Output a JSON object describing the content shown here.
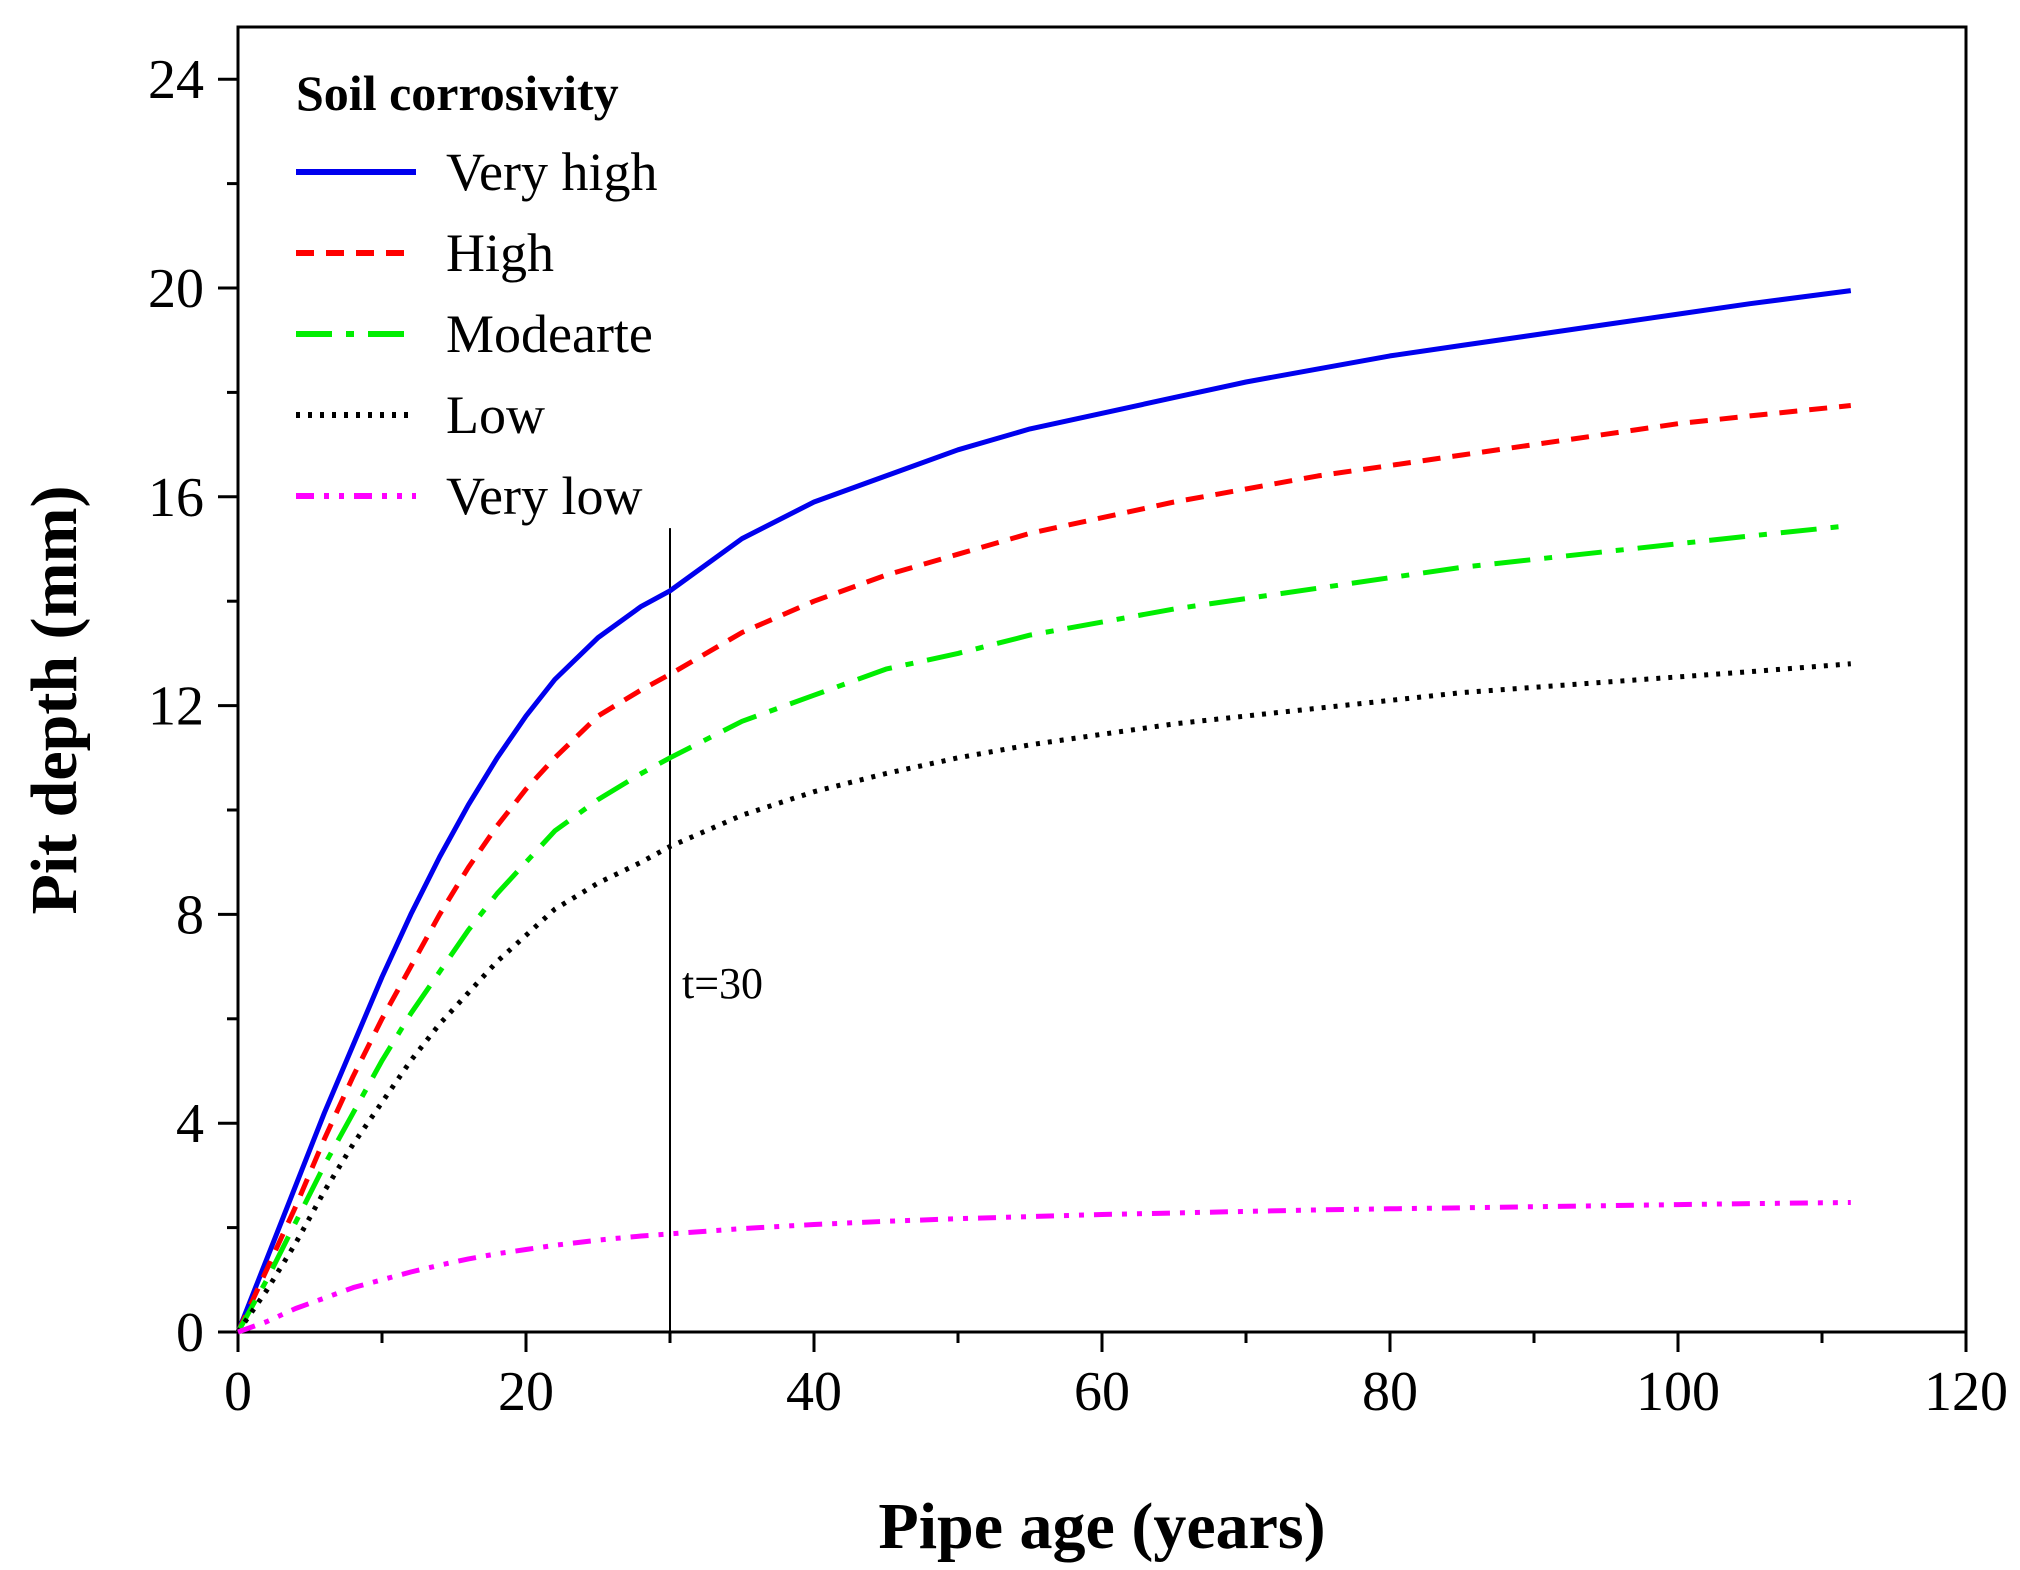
{
  "chart_data": {
    "type": "line",
    "xlabel": "Pipe age (years)",
    "ylabel": "Pit depth (mm)",
    "xlim": [
      0,
      120
    ],
    "ylim": [
      0,
      25
    ],
    "x_ticks": [
      0,
      20,
      40,
      60,
      80,
      100,
      120
    ],
    "x_tick_labels": [
      "0",
      "20",
      "40",
      "60",
      "80",
      "100",
      "120"
    ],
    "y_ticks": [
      0,
      4,
      8,
      12,
      16,
      20,
      24
    ],
    "y_tick_labels": [
      "0",
      "4",
      "8",
      "12",
      "16",
      "20",
      "24"
    ],
    "grid": false,
    "legend": {
      "title": "Soil corrosivity",
      "position": "top-left"
    },
    "x": [
      0,
      2,
      4,
      6,
      8,
      10,
      12,
      14,
      16,
      18,
      20,
      22,
      25,
      28,
      30,
      35,
      40,
      45,
      50,
      55,
      60,
      65,
      70,
      75,
      80,
      85,
      90,
      95,
      100,
      105,
      112
    ],
    "series": [
      {
        "name": "Very high",
        "color": "#0000ee",
        "dash": "solid",
        "values": [
          0,
          1.4,
          2.8,
          4.2,
          5.5,
          6.8,
          8.0,
          9.1,
          10.1,
          11.0,
          11.8,
          12.5,
          13.3,
          13.9,
          14.2,
          15.2,
          15.9,
          16.4,
          16.9,
          17.3,
          17.6,
          17.9,
          18.2,
          18.45,
          18.7,
          18.9,
          19.1,
          19.3,
          19.5,
          19.7,
          19.95
        ]
      },
      {
        "name": "High",
        "color": "#ff0000",
        "dash": "short-dash",
        "values": [
          0,
          1.2,
          2.4,
          3.7,
          4.9,
          6.0,
          7.0,
          8.0,
          8.9,
          9.7,
          10.4,
          11.0,
          11.8,
          12.3,
          12.6,
          13.4,
          14.0,
          14.5,
          14.9,
          15.3,
          15.6,
          15.9,
          16.15,
          16.4,
          16.6,
          16.8,
          17.0,
          17.2,
          17.4,
          17.55,
          17.75
        ]
      },
      {
        "name": "Modearte",
        "color": "#00ee00",
        "dash": "dash-dot",
        "values": [
          0,
          1.0,
          2.1,
          3.2,
          4.2,
          5.2,
          6.1,
          6.9,
          7.7,
          8.4,
          9.0,
          9.6,
          10.2,
          10.7,
          11.0,
          11.7,
          12.2,
          12.7,
          13.0,
          13.35,
          13.6,
          13.85,
          14.05,
          14.25,
          14.45,
          14.65,
          14.8,
          14.95,
          15.1,
          15.25,
          15.45
        ]
      },
      {
        "name": "Low",
        "color": "#000000",
        "dash": "dotted",
        "values": [
          0,
          0.8,
          1.7,
          2.7,
          3.6,
          4.4,
          5.2,
          5.9,
          6.5,
          7.1,
          7.6,
          8.1,
          8.6,
          9.0,
          9.3,
          9.9,
          10.35,
          10.7,
          11.0,
          11.25,
          11.45,
          11.65,
          11.8,
          11.95,
          12.1,
          12.25,
          12.35,
          12.45,
          12.55,
          12.65,
          12.8
        ]
      },
      {
        "name": "Very low",
        "color": "#ff00ff",
        "dash": "dash-dot-dot",
        "values": [
          0,
          0.2,
          0.45,
          0.65,
          0.85,
          1.0,
          1.15,
          1.28,
          1.4,
          1.5,
          1.58,
          1.66,
          1.76,
          1.84,
          1.88,
          1.98,
          2.06,
          2.12,
          2.17,
          2.21,
          2.25,
          2.28,
          2.31,
          2.34,
          2.36,
          2.38,
          2.4,
          2.42,
          2.44,
          2.46,
          2.48
        ]
      }
    ],
    "annotations": [
      {
        "type": "vline",
        "x": 30,
        "y_from": 0,
        "y_to": 15.4,
        "label": "t=30"
      }
    ]
  }
}
